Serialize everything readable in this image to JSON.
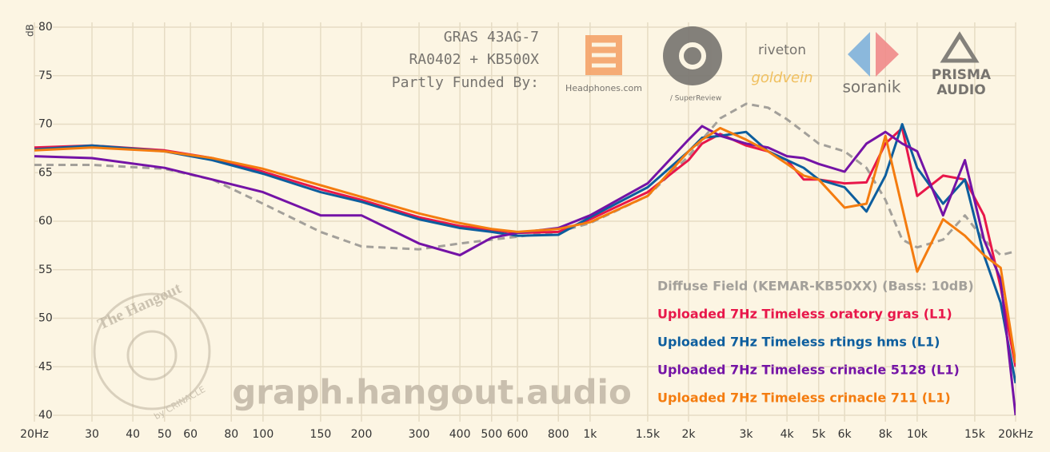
{
  "chart_data": {
    "type": "line",
    "title": [
      "GRAS 43AG-7",
      "RA0402 + KB500X",
      "Partly Funded By:"
    ],
    "ylabel": "dB",
    "watermark": "graph.hangout.audio",
    "annotations": [
      "Headphones.com",
      "/ SuperReview",
      "riveton",
      "goldvein",
      "soranik",
      "PRISMA",
      "AUDIO",
      "The Hangout",
      "by CRINACLE"
    ],
    "x_scale": "log",
    "grid": true,
    "legend": "lower right",
    "xlim": [
      20,
      20000
    ],
    "ylim": [
      40,
      80
    ],
    "xticks": [
      {
        "value": 20,
        "label": "20Hz"
      },
      30,
      40,
      50,
      60,
      80,
      100,
      150,
      200,
      300,
      400,
      500,
      600,
      800,
      {
        "value": 1000,
        "label": "1k"
      },
      {
        "value": 1500,
        "label": "1.5k"
      },
      {
        "value": 2000,
        "label": "2k"
      },
      {
        "value": 3000,
        "label": "3k"
      },
      {
        "value": 4000,
        "label": "4k"
      },
      {
        "value": 5000,
        "label": "5k"
      },
      {
        "value": 6000,
        "label": "6k"
      },
      {
        "value": 8000,
        "label": "8k"
      },
      {
        "value": 10000,
        "label": "10k"
      },
      {
        "value": 15000,
        "label": "15k"
      },
      {
        "value": 20000,
        "label": "20kHz"
      }
    ],
    "yticks": [
      40,
      45,
      50,
      55,
      60,
      65,
      70,
      75,
      80
    ],
    "x": [
      20,
      30,
      50,
      70,
      100,
      150,
      200,
      300,
      400,
      500,
      600,
      800,
      1000,
      1500,
      2000,
      2200,
      2500,
      3000,
      3500,
      4000,
      4500,
      5000,
      6000,
      7000,
      8000,
      9000,
      10000,
      12000,
      14000,
      16000,
      18000,
      20000
    ],
    "series": [
      {
        "name": "Diffuse Field (KEMAR-KB50XX) (Bass: 10dB)",
        "color": "#a3a09a",
        "dashed": true,
        "values": [
          65.8,
          65.8,
          65.4,
          64.3,
          61.8,
          58.9,
          57.4,
          57.1,
          57.7,
          58.1,
          58.4,
          58.9,
          59.8,
          62.6,
          66.7,
          68.4,
          70.6,
          72.1,
          71.7,
          70.5,
          69.2,
          68.0,
          67.2,
          65.5,
          62.2,
          58.1,
          57.3,
          58.1,
          60.6,
          58.1,
          56.5,
          56.9
        ]
      },
      {
        "name": "Uploaded 7Hz Timeless oratory gras (L1)",
        "color": "#e8174a",
        "values": [
          67.6,
          67.8,
          67.3,
          66.5,
          65.1,
          63.3,
          62.2,
          60.4,
          59.5,
          59.1,
          58.8,
          58.9,
          60.2,
          63.0,
          66.3,
          68.0,
          69.0,
          67.8,
          67.2,
          66.3,
          64.3,
          64.3,
          63.9,
          64.0,
          68.0,
          69.6,
          62.6,
          64.7,
          64.3,
          60.6,
          53.2,
          45.0
        ]
      },
      {
        "name": "Uploaded 7Hz Timeless rtings hms (L1)",
        "color": "#0d5e9e",
        "values": [
          67.4,
          67.8,
          67.2,
          66.3,
          64.9,
          63.0,
          62.0,
          60.2,
          59.3,
          58.9,
          58.5,
          58.6,
          60.4,
          63.5,
          67.2,
          68.6,
          68.8,
          69.2,
          67.2,
          66.3,
          65.5,
          64.3,
          63.5,
          61.0,
          64.7,
          70.0,
          65.5,
          61.8,
          64.3,
          56.5,
          51.6,
          43.3
        ]
      },
      {
        "name": "Uploaded 7Hz Timeless crinacle 5128 (L1)",
        "color": "#7413a6",
        "values": [
          66.7,
          66.5,
          65.5,
          64.3,
          63.0,
          60.6,
          60.6,
          57.7,
          56.5,
          58.3,
          58.8,
          59.3,
          60.6,
          63.9,
          68.4,
          69.8,
          68.8,
          68.0,
          67.6,
          66.7,
          66.5,
          65.9,
          65.1,
          68.0,
          69.2,
          68.0,
          67.2,
          60.6,
          66.3,
          58.1,
          54.0,
          40.0
        ]
      },
      {
        "name": "Uploaded 7Hz Timeless crinacle 711 (L1)",
        "color": "#f47c0f",
        "values": [
          67.3,
          67.6,
          67.2,
          66.5,
          65.4,
          63.7,
          62.5,
          60.8,
          59.8,
          59.2,
          58.9,
          59.2,
          59.9,
          62.6,
          67.2,
          68.4,
          69.6,
          68.4,
          67.2,
          65.9,
          64.7,
          64.3,
          61.4,
          61.8,
          68.8,
          61.4,
          54.8,
          60.2,
          58.5,
          56.5,
          55.2,
          45.4
        ]
      }
    ]
  }
}
